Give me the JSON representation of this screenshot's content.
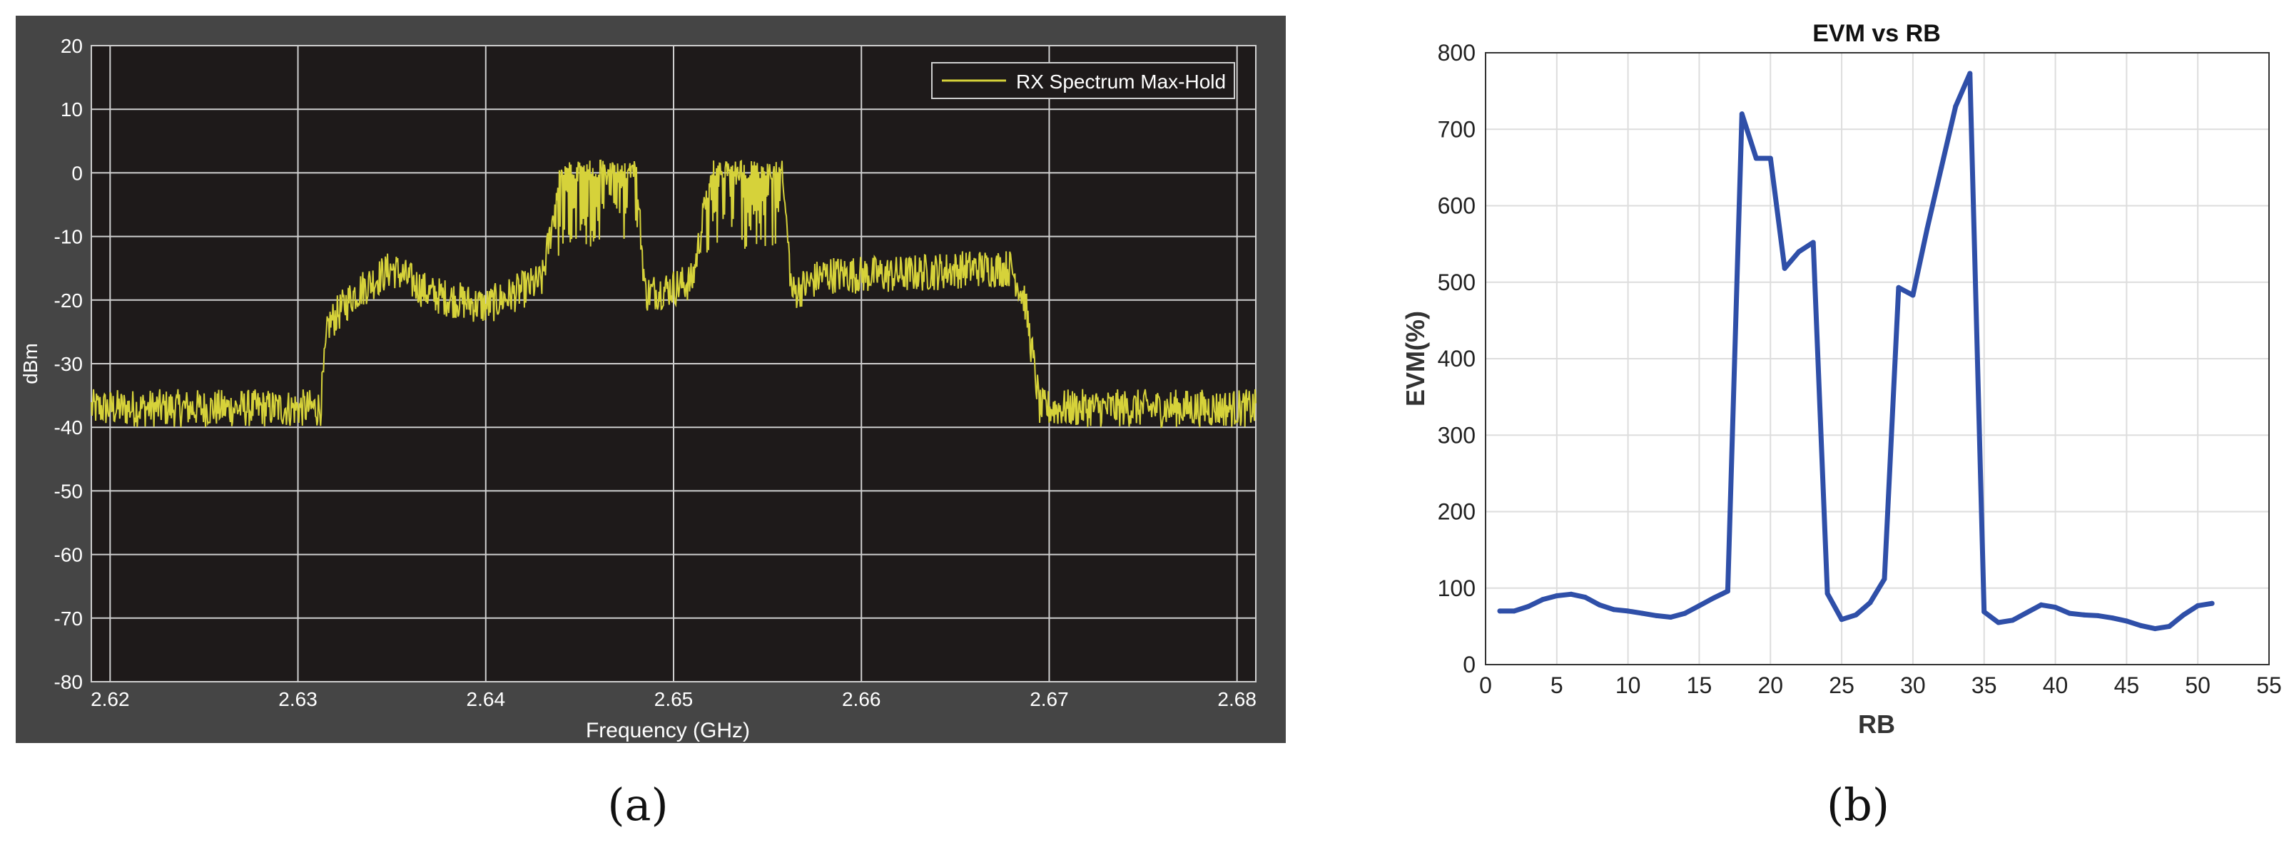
{
  "figure": {
    "panel_a_label": "(a)",
    "panel_b_label": "(b)"
  },
  "chart_data": [
    {
      "type": "line",
      "title": "",
      "xlabel": "Frequency (GHz)",
      "ylabel": "dBm",
      "xlim": [
        2.619,
        2.681
      ],
      "ylim": [
        -80,
        20
      ],
      "xticks": [
        2.62,
        2.63,
        2.64,
        2.65,
        2.66,
        2.67,
        2.68
      ],
      "xtick_labels": [
        "2.62",
        "2.63",
        "2.64",
        "2.65",
        "2.66",
        "2.67",
        "2.68"
      ],
      "yticks": [
        20,
        10,
        0,
        -10,
        -20,
        -30,
        -40,
        -50,
        -60,
        -70,
        -80
      ],
      "ytick_labels": [
        "20",
        "10",
        "0",
        "-10",
        "-20",
        "-30",
        "-40",
        "-50",
        "-60",
        "-70",
        "-80"
      ],
      "grid": true,
      "legend_position": "top-right",
      "colors": {
        "background": "#1e1a1a",
        "frame": "#454545",
        "grid": "#cfcfcf",
        "trace": "#d6d23a",
        "text": "#ffffff"
      },
      "series": [
        {
          "name": "RX Spectrum Max-Hold",
          "envelope": {
            "x": [
              2.619,
              2.6312,
              2.6316,
              2.633,
              2.635,
              2.637,
              2.64,
              2.643,
              2.644,
              2.648,
              2.6485,
              2.65,
              2.651,
              2.652,
              2.6558,
              2.6563,
              2.658,
              2.662,
              2.666,
              2.668,
              2.6687,
              2.6695,
              2.681
            ],
            "y": [
              -37,
              -37,
              -24,
              -19,
              -15,
              -19,
              -21,
              -17,
              0,
              0,
              -19,
              -18,
              -17,
              0,
              0,
              -19,
              -16,
              -16,
              -15,
              -15,
              -20,
              -37,
              -37
            ]
          }
        }
      ]
    },
    {
      "type": "line",
      "title": "EVM vs RB",
      "xlabel": "RB",
      "ylabel": "EVM(%)",
      "xlim": [
        0,
        55
      ],
      "ylim": [
        0,
        800
      ],
      "xticks": [
        0,
        5,
        10,
        15,
        20,
        25,
        30,
        35,
        40,
        45,
        50,
        55
      ],
      "yticks": [
        0,
        100,
        200,
        300,
        400,
        500,
        600,
        700,
        800
      ],
      "grid": true,
      "colors": {
        "line": "#2f4fa8",
        "grid": "#dddddd"
      },
      "series": [
        {
          "x": [
            1,
            2,
            3,
            4,
            5,
            6,
            7,
            8,
            9,
            10,
            11,
            12,
            13,
            14,
            15,
            16,
            17,
            18,
            19,
            20,
            21,
            22,
            23,
            24,
            25,
            26,
            27,
            28,
            29,
            30,
            31,
            32,
            33,
            34,
            35,
            36,
            37,
            38,
            39,
            40,
            41,
            42,
            43,
            44,
            45,
            46,
            47,
            48,
            49,
            50,
            51
          ],
          "values": [
            70,
            70,
            76,
            85,
            90,
            92,
            88,
            78,
            72,
            70,
            67,
            64,
            62,
            67,
            77,
            87,
            96,
            720,
            662,
            662,
            518,
            540,
            552,
            93,
            59,
            65,
            81,
            112,
            493,
            483,
            570,
            650,
            730,
            773,
            69,
            55,
            58,
            68,
            78,
            75,
            67,
            65,
            64,
            61,
            57,
            51,
            47,
            50,
            65,
            77,
            80
          ]
        }
      ]
    }
  ]
}
